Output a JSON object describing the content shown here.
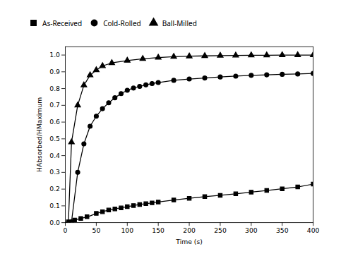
{
  "chart_data": {
    "type": "line",
    "xlabel": "Time (s)",
    "ylabel": "HAbsorbed/HMaximum",
    "xlim": [
      0,
      400
    ],
    "ylim": [
      0,
      1.05
    ],
    "xticks": [
      0,
      50,
      100,
      150,
      200,
      250,
      300,
      350,
      400
    ],
    "yticks": [
      {
        "value": 0.0,
        "label": "0.0"
      },
      0.1,
      0.2,
      0.3,
      0.4,
      0.5,
      0.6,
      0.7,
      0.8,
      0.9,
      {
        "value": 1.0,
        "label": "1.0"
      }
    ],
    "grid": false,
    "legend": "top",
    "series": [
      {
        "name": "As-Received",
        "color": "#000000",
        "marker": "square",
        "line_style": "solid",
        "x": [
          0,
          5,
          10,
          15,
          20,
          25,
          30,
          35,
          40,
          50,
          60,
          70,
          80,
          90,
          100,
          110,
          120,
          130,
          140,
          150,
          175,
          200,
          225,
          250,
          275,
          300,
          325,
          350,
          375,
          400
        ],
        "values": [
          0.0,
          0.005,
          0.01,
          0.015,
          0.02,
          0.025,
          0.03,
          0.035,
          0.04,
          0.055,
          0.065,
          0.075,
          0.082,
          0.088,
          0.095,
          0.102,
          0.108,
          0.113,
          0.118,
          0.123,
          0.135,
          0.145,
          0.155,
          0.163,
          0.172,
          0.182,
          0.192,
          0.202,
          0.213,
          0.23
        ],
        "markers": {
          "x": [
            5,
            15,
            25,
            35,
            50,
            60,
            70,
            80,
            90,
            100,
            110,
            120,
            130,
            140,
            150,
            175,
            200,
            225,
            250,
            275,
            300,
            325,
            350,
            375,
            400
          ],
          "values": [
            0.005,
            0.015,
            0.025,
            0.035,
            0.055,
            0.065,
            0.075,
            0.082,
            0.088,
            0.095,
            0.102,
            0.108,
            0.113,
            0.118,
            0.123,
            0.135,
            0.145,
            0.155,
            0.163,
            0.172,
            0.182,
            0.192,
            0.202,
            0.213,
            0.23
          ]
        }
      },
      {
        "name": "Cold-Rolled",
        "color": "#000000",
        "marker": "circle",
        "line_style": "solid",
        "x": [
          0,
          10,
          20,
          30,
          40,
          50,
          60,
          70,
          80,
          90,
          100,
          110,
          120,
          130,
          140,
          150,
          175,
          200,
          225,
          250,
          275,
          300,
          325,
          350,
          375,
          400
        ],
        "values": [
          0.0,
          0.005,
          0.3,
          0.47,
          0.575,
          0.635,
          0.68,
          0.715,
          0.745,
          0.77,
          0.79,
          0.803,
          0.813,
          0.822,
          0.83,
          0.836,
          0.849,
          0.857,
          0.863,
          0.869,
          0.874,
          0.879,
          0.882,
          0.885,
          0.887,
          0.89
        ],
        "markers": {
          "x": [
            10,
            20,
            30,
            40,
            50,
            60,
            70,
            80,
            90,
            100,
            110,
            120,
            130,
            140,
            150,
            175,
            200,
            225,
            250,
            275,
            300,
            325,
            350,
            375,
            400
          ],
          "values": [
            0.005,
            0.3,
            0.47,
            0.575,
            0.635,
            0.68,
            0.715,
            0.745,
            0.77,
            0.79,
            0.803,
            0.813,
            0.822,
            0.83,
            0.836,
            0.849,
            0.857,
            0.863,
            0.869,
            0.874,
            0.879,
            0.882,
            0.885,
            0.887,
            0.89
          ]
        }
      },
      {
        "name": "Ball-Milled",
        "color": "#000000",
        "marker": "triangle",
        "line_style": "solid",
        "x": [
          0,
          5,
          10,
          20,
          30,
          40,
          50,
          60,
          75,
          100,
          125,
          150,
          175,
          200,
          225,
          250,
          275,
          300,
          325,
          350,
          375,
          400
        ],
        "values": [
          0.0,
          0.005,
          0.48,
          0.7,
          0.82,
          0.88,
          0.91,
          0.935,
          0.953,
          0.967,
          0.978,
          0.985,
          0.99,
          0.993,
          0.995,
          0.997,
          0.998,
          0.999,
          0.999,
          1.0,
          1.0,
          1.0
        ],
        "markers": {
          "x": [
            10,
            20,
            30,
            40,
            50,
            60,
            75,
            100,
            125,
            150,
            175,
            200,
            225,
            250,
            275,
            300,
            325,
            350,
            375,
            400
          ],
          "values": [
            0.48,
            0.7,
            0.82,
            0.88,
            0.91,
            0.935,
            0.953,
            0.967,
            0.978,
            0.985,
            0.99,
            0.993,
            0.995,
            0.997,
            0.998,
            0.999,
            0.999,
            1.0,
            1.0,
            1.0
          ]
        }
      }
    ]
  }
}
